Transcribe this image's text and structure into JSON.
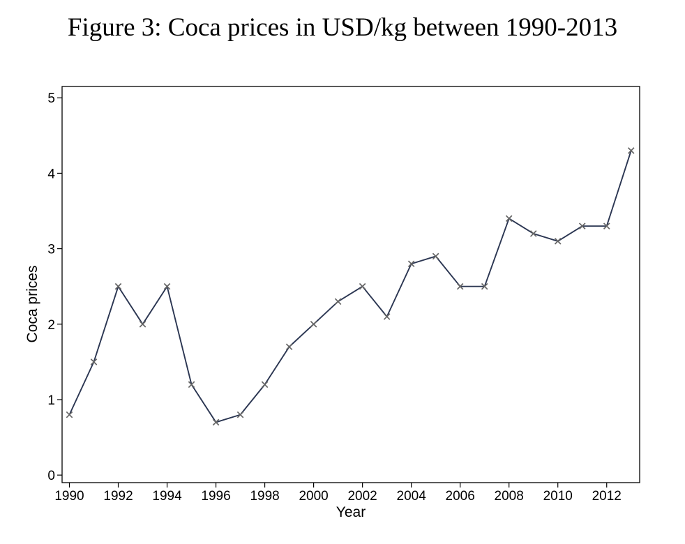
{
  "chart_data": {
    "type": "line",
    "title": "Figure 3: Coca prices in USD/kg between 1990-2013",
    "xlabel": "Year",
    "ylabel": "Coca prices",
    "xlim": [
      1989.7,
      2013.35
    ],
    "ylim": [
      -0.1,
      5.15
    ],
    "x_ticks": [
      1990,
      1992,
      1994,
      1996,
      1998,
      2000,
      2002,
      2004,
      2006,
      2008,
      2010,
      2012
    ],
    "y_ticks": [
      0,
      1,
      2,
      3,
      4,
      5
    ],
    "grid": false,
    "marker": "x",
    "line_color": "#2b3652",
    "marker_color": "#666666",
    "x": [
      1990,
      1991,
      1992,
      1993,
      1994,
      1995,
      1996,
      1997,
      1998,
      1999,
      2000,
      2001,
      2002,
      2003,
      2004,
      2005,
      2006,
      2007,
      2008,
      2009,
      2010,
      2011,
      2012,
      2013
    ],
    "values": [
      0.8,
      1.5,
      2.5,
      2.0,
      2.5,
      1.2,
      0.7,
      0.8,
      1.2,
      1.7,
      2.0,
      2.3,
      2.5,
      2.1,
      2.8,
      2.9,
      2.5,
      2.5,
      3.4,
      3.2,
      3.1,
      3.3,
      3.3,
      4.3
    ]
  }
}
